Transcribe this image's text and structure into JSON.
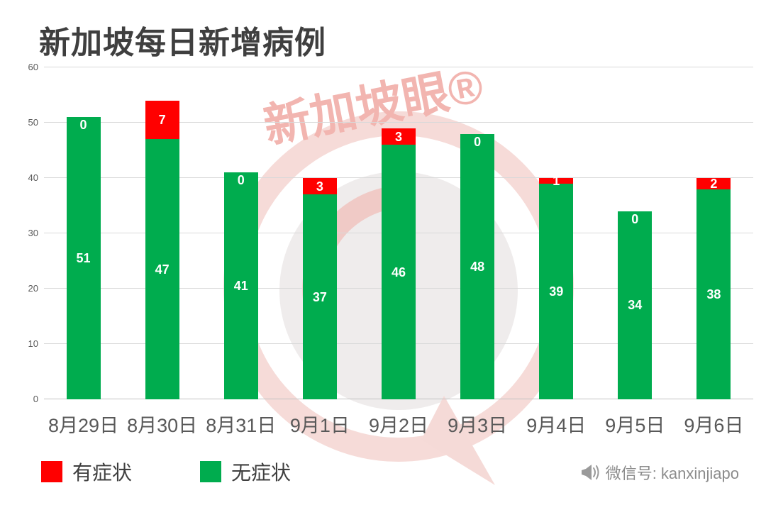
{
  "title": "新加坡每日新增病例",
  "chart_data": {
    "type": "bar",
    "stacked": true,
    "title": "新加坡每日新增病例",
    "categories": [
      "8月29日",
      "8月30日",
      "8月31日",
      "9月1日",
      "9月2日",
      "9月3日",
      "9月4日",
      "9月5日",
      "9月6日"
    ],
    "series": [
      {
        "name": "无症状",
        "color": "#00AC4E",
        "values": [
          51,
          47,
          41,
          37,
          46,
          48,
          39,
          34,
          38
        ]
      },
      {
        "name": "有症状",
        "color": "#FF0000",
        "values": [
          0,
          7,
          0,
          3,
          3,
          0,
          1,
          0,
          2
        ]
      }
    ],
    "totals": [
      51,
      54,
      41,
      40,
      49,
      48,
      40,
      34,
      40
    ],
    "xlabel": "",
    "ylabel": "",
    "ylim": [
      0,
      60
    ],
    "ytick_step": 10,
    "grid": true,
    "legend_position": "bottom-left",
    "value_labels": "white bold inside segments; 0 shown at top of bar when no red segment"
  },
  "legend": [
    {
      "label": "有症状",
      "color": "#FF0000"
    },
    {
      "label": "无症状",
      "color": "#00AC4E"
    }
  ],
  "watermark": {
    "text": "新加坡眼®"
  },
  "footer": {
    "wechat_label": "微信号: kanxinjiapo"
  },
  "colors": {
    "green": "#00AC4E",
    "red": "#FF0000",
    "grid": "#D9D9D9",
    "axis_text": "#595959",
    "title_text": "#3F3F3F",
    "footer_text": "#8C8C8C",
    "watermark_pink": "#F2B5B0"
  }
}
